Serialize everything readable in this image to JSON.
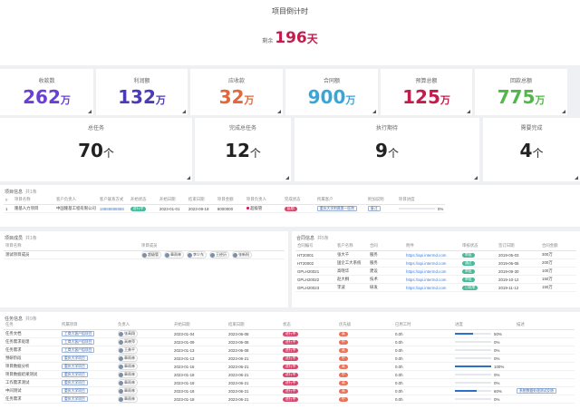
{
  "countdown": {
    "title": "项目倒计时",
    "prefix": "剩余",
    "value": "196",
    "unit": "天"
  },
  "stats_row1": [
    {
      "label": "收款数",
      "value": "262",
      "unit": "万",
      "color": "#6a3fd6"
    },
    {
      "label": "利润额",
      "value": "132",
      "unit": "万",
      "color": "#4a3bb8"
    },
    {
      "label": "应收款",
      "value": "32",
      "unit": "万",
      "color": "#e0683a"
    },
    {
      "label": "合同额",
      "value": "900",
      "unit": "万",
      "color": "#3aa6d6"
    },
    {
      "label": "预算总额",
      "value": "125",
      "unit": "万",
      "color": "#c41c4c"
    },
    {
      "label": "回款总额",
      "value": "775",
      "unit": "万",
      "color": "#4fb848"
    }
  ],
  "stats_row2": [
    {
      "label": "总任务",
      "value": "70",
      "unit": "个"
    },
    {
      "label": "完成总任务",
      "value": "12",
      "unit": "个"
    },
    {
      "label": "执行期待",
      "value": "9",
      "unit": "个"
    },
    {
      "label": "需要完成",
      "value": "4",
      "unit": "个"
    }
  ],
  "project_info": {
    "title": "项目信息",
    "count": "共1条",
    "columns": [
      "#",
      "项目名称",
      "客户负责人",
      "客户联系方式",
      "开始状态",
      "开始日期",
      "结束日期",
      "项目金额",
      "项目负责人",
      "完成状态",
      "所属客户",
      "附加说明",
      "项目进度"
    ],
    "rows": [
      {
        "no": "1",
        "name": "隆基人力项目",
        "owner": "中国隆基工程有限公司",
        "contact": "18888888888",
        "status": "进行中",
        "start": "2023-01-01",
        "end": "2023-09-18",
        "amount": "8000000",
        "lead": "超级管",
        "state": "延期",
        "customer": "重庆大学附属第一医院",
        "note": "备注",
        "progress": "0%"
      }
    ]
  },
  "member_info": {
    "title": "项目成员",
    "count": "共1条",
    "columns": [
      "项目名称",
      "项目成员"
    ],
    "rows": [
      {
        "name": "测试项目成员",
        "members": [
          "超级管",
          "章雨林",
          "李少东",
          "王经历",
          "张新阳"
        ]
      }
    ]
  },
  "contracts": {
    "title": "合同信息",
    "count": "共5条",
    "columns": [
      "合同编号",
      "客户名称",
      "合同",
      "附件",
      "审核状态",
      "签订日期",
      "合同金额"
    ],
    "rows": [
      {
        "no": "HT20001",
        "client": "张大千",
        "contract": "服务",
        "file": "https://api.intermd.com",
        "status": "审批",
        "date": "2019-05-03",
        "amount": "300万"
      },
      {
        "no": "HT20002",
        "client": "国企工大系统",
        "contract": "服务",
        "file": "https://api.intermd.com",
        "status": "通过",
        "date": "2019-06-06",
        "amount": "200万"
      },
      {
        "no": "GPLH20021",
        "client": "高晓华",
        "contract": "建设",
        "file": "https://api.intermd.com",
        "status": "审批",
        "date": "2019-09-30",
        "amount": "100万"
      },
      {
        "no": "GPLH20022",
        "client": "赵大桐",
        "contract": "技术",
        "file": "https://api.intermd.com",
        "status": "审批",
        "date": "2019-10-12",
        "amount": "150万"
      },
      {
        "no": "GPLH20023",
        "client": "李波",
        "contract": "研发",
        "file": "https://api.intermd.com",
        "status": "已结束",
        "date": "2019-11-12",
        "amount": "150万"
      }
    ]
  },
  "tasks": {
    "title": "任务信息",
    "count": "共9条",
    "columns": [
      "任务",
      "所属项目",
      "负责人",
      "开始日期",
      "结束日期",
      "状态",
      "优先级",
      "已用工时",
      "进度",
      "描述"
    ],
    "rows": [
      {
        "task": "任务文档",
        "project": "工商大客户组项目",
        "owner": "张高翔",
        "start": "2023-01-04",
        "end": "2023-06-08",
        "status": "进行中",
        "priority": "高",
        "hours": "0.0h",
        "progress": 50,
        "ptext": "50%",
        "desc": ""
      },
      {
        "task": "任务需求处理",
        "project": "工商大客户组项目",
        "owner": "高晓萍",
        "start": "2023-01-09",
        "end": "2023-06-08",
        "status": "进行中",
        "priority": "中",
        "hours": "0.0h",
        "progress": 0,
        "ptext": "0%",
        "desc": ""
      },
      {
        "task": "任务需求",
        "project": "工商大客户组项目",
        "owner": "王勇平",
        "start": "2023-01-13",
        "end": "2023-06-08",
        "status": "进行中",
        "priority": "高",
        "hours": "0.0h",
        "progress": 0,
        "ptext": "0%",
        "desc": ""
      },
      {
        "task": "预研阶段",
        "project": "重庆大学项目",
        "owner": "章雨林",
        "start": "2023-01-13",
        "end": "2023-06-21",
        "status": "进行中",
        "priority": "中",
        "hours": "0.0h",
        "progress": 0,
        "ptext": "0%",
        "desc": ""
      },
      {
        "task": "项目数据分析",
        "project": "重庆大学项目",
        "owner": "章雨林",
        "start": "2023-01-16",
        "end": "2023-06-21",
        "status": "进行中",
        "priority": "高",
        "hours": "0.0h",
        "progress": 100,
        "ptext": "100%",
        "desc": ""
      },
      {
        "task": "项目数据结果测试",
        "project": "重庆大学项目",
        "owner": "章雨林",
        "start": "2023-01-18",
        "end": "2023-06-21",
        "status": "进行中",
        "priority": "中",
        "hours": "0.0h",
        "progress": 0,
        "ptext": "0%",
        "desc": ""
      },
      {
        "task": "工作需求测试",
        "project": "重庆大学项目",
        "owner": "章雨林",
        "start": "2023-01-18",
        "end": "2023-06-21",
        "status": "进行中",
        "priority": "高",
        "hours": "0.0h",
        "progress": 0,
        "ptext": "0%",
        "desc": ""
      },
      {
        "task": "中间测试",
        "project": "重庆大学项目",
        "owner": "章雨林",
        "start": "2023-01-18",
        "end": "2023-06-21",
        "status": "进行中",
        "priority": "高",
        "hours": "0.0h",
        "progress": 60,
        "ptext": "60%",
        "desc": "系统数据处理测试反馈"
      },
      {
        "task": "任务需求",
        "project": "重庆大学项目",
        "owner": "章雨林",
        "start": "2023-01-18",
        "end": "2023-06-21",
        "status": "进行中",
        "priority": "中",
        "hours": "0.0h",
        "progress": 0,
        "ptext": "0%",
        "desc": ""
      }
    ]
  },
  "colors": {
    "status_running": "#d14a6e",
    "status_green": "#4bb89a",
    "priority": "#e8735a",
    "bar": "#2b70c9"
  }
}
